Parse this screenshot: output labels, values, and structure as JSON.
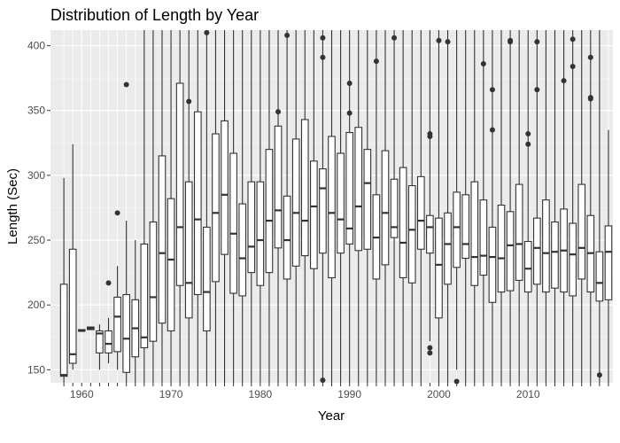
{
  "chart_data": {
    "type": "boxplot",
    "title": "Distribution of Length by Year",
    "xlabel": "Year",
    "ylabel": "Length (Sec)",
    "xlim": [
      1956.5,
      2019.5
    ],
    "ylim": [
      140,
      412
    ],
    "x_ticks": [
      1960,
      1970,
      1980,
      1990,
      2000,
      2010
    ],
    "y_ticks": [
      150,
      200,
      250,
      300,
      350,
      400
    ],
    "grid": true,
    "legend": "none",
    "colors": {
      "panel": "#ebebeb",
      "grid_major": "#ffffff",
      "grid_minor": "#f5f5f5",
      "box_fill": "#ffffff",
      "box_stroke": "#333333",
      "outlier": "#333333"
    },
    "boxes": [
      {
        "x": 1958,
        "min": 130,
        "q1": 145,
        "median": 146,
        "q3": 216,
        "max": 298,
        "outliers": []
      },
      {
        "x": 1959,
        "min": 150,
        "q1": 155,
        "median": 162,
        "q3": 243,
        "max": 324,
        "outliers": []
      },
      {
        "x": 1960,
        "min": 180,
        "q1": 180,
        "median": 180,
        "q3": 181,
        "max": 181,
        "outliers": []
      },
      {
        "x": 1961,
        "min": 181,
        "q1": 181,
        "median": 182,
        "q3": 183,
        "max": 183,
        "outliers": []
      },
      {
        "x": 1962,
        "min": 150,
        "q1": 163,
        "median": 178,
        "q3": 180,
        "max": 185,
        "outliers": []
      },
      {
        "x": 1963,
        "min": 155,
        "q1": 163,
        "median": 170,
        "q3": 180,
        "max": 190,
        "outliers": [
          217
        ]
      },
      {
        "x": 1964,
        "min": 150,
        "q1": 164,
        "median": 191,
        "q3": 206,
        "max": 230,
        "outliers": [
          271
        ]
      },
      {
        "x": 1965,
        "min": 138,
        "q1": 148,
        "median": 174,
        "q3": 208,
        "max": 265,
        "outliers": [
          370
        ]
      },
      {
        "x": 1966,
        "min": 140,
        "q1": 160,
        "median": 182,
        "q3": 204,
        "max": 250,
        "outliers": []
      },
      {
        "x": 1967,
        "min": 140,
        "q1": 167,
        "median": 175,
        "q3": 247,
        "max": 412,
        "outliers": []
      },
      {
        "x": 1968,
        "min": 140,
        "q1": 172,
        "median": 206,
        "q3": 264,
        "max": 412,
        "outliers": []
      },
      {
        "x": 1969,
        "min": 140,
        "q1": 186,
        "median": 240,
        "q3": 315,
        "max": 412,
        "outliers": []
      },
      {
        "x": 1970,
        "min": 140,
        "q1": 180,
        "median": 235,
        "q3": 282,
        "max": 412,
        "outliers": []
      },
      {
        "x": 1971,
        "min": 140,
        "q1": 215,
        "median": 260,
        "q3": 371,
        "max": 412,
        "outliers": []
      },
      {
        "x": 1972,
        "min": 140,
        "q1": 190,
        "median": 217,
        "q3": 295,
        "max": 412,
        "outliers": [
          357
        ]
      },
      {
        "x": 1973,
        "min": 140,
        "q1": 208,
        "median": 266,
        "q3": 349,
        "max": 412,
        "outliers": []
      },
      {
        "x": 1974,
        "min": 140,
        "q1": 180,
        "median": 210,
        "q3": 260,
        "max": 412,
        "outliers": [
          410
        ]
      },
      {
        "x": 1975,
        "min": 140,
        "q1": 218,
        "median": 271,
        "q3": 332,
        "max": 412,
        "outliers": []
      },
      {
        "x": 1976,
        "min": 140,
        "q1": 239,
        "median": 285,
        "q3": 342,
        "max": 412,
        "outliers": []
      },
      {
        "x": 1977,
        "min": 140,
        "q1": 209,
        "median": 255,
        "q3": 317,
        "max": 412,
        "outliers": []
      },
      {
        "x": 1978,
        "min": 140,
        "q1": 207,
        "median": 236,
        "q3": 278,
        "max": 412,
        "outliers": []
      },
      {
        "x": 1979,
        "min": 140,
        "q1": 225,
        "median": 245,
        "q3": 295,
        "max": 412,
        "outliers": []
      },
      {
        "x": 1980,
        "min": 140,
        "q1": 215,
        "median": 250,
        "q3": 295,
        "max": 412,
        "outliers": []
      },
      {
        "x": 1981,
        "min": 140,
        "q1": 225,
        "median": 265,
        "q3": 320,
        "max": 412,
        "outliers": []
      },
      {
        "x": 1982,
        "min": 140,
        "q1": 244,
        "median": 273,
        "q3": 338,
        "max": 412,
        "outliers": [
          349
        ]
      },
      {
        "x": 1983,
        "min": 140,
        "q1": 220,
        "median": 250,
        "q3": 284,
        "max": 412,
        "outliers": [
          408
        ]
      },
      {
        "x": 1984,
        "min": 140,
        "q1": 230,
        "median": 271,
        "q3": 328,
        "max": 412,
        "outliers": []
      },
      {
        "x": 1985,
        "min": 140,
        "q1": 238,
        "median": 265,
        "q3": 343,
        "max": 412,
        "outliers": []
      },
      {
        "x": 1986,
        "min": 140,
        "q1": 228,
        "median": 276,
        "q3": 311,
        "max": 412,
        "outliers": []
      },
      {
        "x": 1987,
        "min": 140,
        "q1": 240,
        "median": 290,
        "q3": 305,
        "max": 412,
        "outliers": [
          391,
          406,
          142
        ]
      },
      {
        "x": 1988,
        "min": 140,
        "q1": 221,
        "median": 271,
        "q3": 330,
        "max": 412,
        "outliers": []
      },
      {
        "x": 1989,
        "min": 140,
        "q1": 240,
        "median": 266,
        "q3": 317,
        "max": 412,
        "outliers": []
      },
      {
        "x": 1990,
        "min": 140,
        "q1": 247,
        "median": 259,
        "q3": 333,
        "max": 412,
        "outliers": [
          371,
          348
        ]
      },
      {
        "x": 1991,
        "min": 140,
        "q1": 242,
        "median": 276,
        "q3": 337,
        "max": 412,
        "outliers": []
      },
      {
        "x": 1992,
        "min": 140,
        "q1": 243,
        "median": 294,
        "q3": 320,
        "max": 412,
        "outliers": []
      },
      {
        "x": 1993,
        "min": 140,
        "q1": 220,
        "median": 252,
        "q3": 285,
        "max": 412,
        "outliers": [
          388
        ]
      },
      {
        "x": 1994,
        "min": 140,
        "q1": 231,
        "median": 271,
        "q3": 319,
        "max": 412,
        "outliers": []
      },
      {
        "x": 1995,
        "min": 140,
        "q1": 252,
        "median": 260,
        "q3": 297,
        "max": 412,
        "outliers": [
          406
        ]
      },
      {
        "x": 1996,
        "min": 140,
        "q1": 221,
        "median": 248,
        "q3": 306,
        "max": 412,
        "outliers": []
      },
      {
        "x": 1997,
        "min": 140,
        "q1": 217,
        "median": 258,
        "q3": 292,
        "max": 412,
        "outliers": []
      },
      {
        "x": 1998,
        "min": 140,
        "q1": 243,
        "median": 265,
        "q3": 299,
        "max": 412,
        "outliers": []
      },
      {
        "x": 1999,
        "min": 172,
        "q1": 240,
        "median": 260,
        "q3": 269,
        "max": 412,
        "outliers": [
          330,
          332,
          167,
          163
        ]
      },
      {
        "x": 2000,
        "min": 140,
        "q1": 190,
        "median": 231,
        "q3": 267,
        "max": 412,
        "outliers": [
          404
        ]
      },
      {
        "x": 2001,
        "min": 140,
        "q1": 216,
        "median": 247,
        "q3": 271,
        "max": 412,
        "outliers": [
          403
        ]
      },
      {
        "x": 2002,
        "min": 150,
        "q1": 229,
        "median": 260,
        "q3": 287,
        "max": 412,
        "outliers": [
          141
        ]
      },
      {
        "x": 2003,
        "min": 140,
        "q1": 236,
        "median": 247,
        "q3": 285,
        "max": 412,
        "outliers": []
      },
      {
        "x": 2004,
        "min": 140,
        "q1": 215,
        "median": 237,
        "q3": 295,
        "max": 412,
        "outliers": []
      },
      {
        "x": 2005,
        "min": 140,
        "q1": 223,
        "median": 238,
        "q3": 281,
        "max": 412,
        "outliers": [
          386
        ]
      },
      {
        "x": 2006,
        "min": 140,
        "q1": 202,
        "median": 237,
        "q3": 260,
        "max": 412,
        "outliers": [
          366,
          335
        ]
      },
      {
        "x": 2007,
        "min": 140,
        "q1": 210,
        "median": 236,
        "q3": 277,
        "max": 412,
        "outliers": []
      },
      {
        "x": 2008,
        "min": 140,
        "q1": 211,
        "median": 246,
        "q3": 272,
        "max": 412,
        "outliers": [
          403,
          404,
          413
        ]
      },
      {
        "x": 2009,
        "min": 140,
        "q1": 219,
        "median": 247,
        "q3": 293,
        "max": 412,
        "outliers": []
      },
      {
        "x": 2010,
        "min": 140,
        "q1": 210,
        "median": 228,
        "q3": 249,
        "max": 412,
        "outliers": [
          332,
          324
        ]
      },
      {
        "x": 2011,
        "min": 140,
        "q1": 216,
        "median": 244,
        "q3": 267,
        "max": 412,
        "outliers": [
          366,
          403
        ]
      },
      {
        "x": 2012,
        "min": 140,
        "q1": 210,
        "median": 240,
        "q3": 281,
        "max": 412,
        "outliers": []
      },
      {
        "x": 2013,
        "min": 140,
        "q1": 213,
        "median": 241,
        "q3": 264,
        "max": 412,
        "outliers": []
      },
      {
        "x": 2014,
        "min": 140,
        "q1": 210,
        "median": 242,
        "q3": 274,
        "max": 412,
        "outliers": [
          373
        ]
      },
      {
        "x": 2015,
        "min": 140,
        "q1": 207,
        "median": 239,
        "q3": 263,
        "max": 412,
        "outliers": [
          384,
          405
        ]
      },
      {
        "x": 2016,
        "min": 140,
        "q1": 220,
        "median": 244,
        "q3": 293,
        "max": 412,
        "outliers": []
      },
      {
        "x": 2017,
        "min": 140,
        "q1": 210,
        "median": 240,
        "q3": 269,
        "max": 412,
        "outliers": [
          391,
          360,
          359
        ]
      },
      {
        "x": 2018,
        "min": 140,
        "q1": 203,
        "median": 217,
        "q3": 241,
        "max": 412,
        "outliers": [
          146
        ]
      },
      {
        "x": 2019,
        "min": 140,
        "q1": 204,
        "median": 241,
        "q3": 261,
        "max": 335,
        "outliers": []
      }
    ]
  }
}
